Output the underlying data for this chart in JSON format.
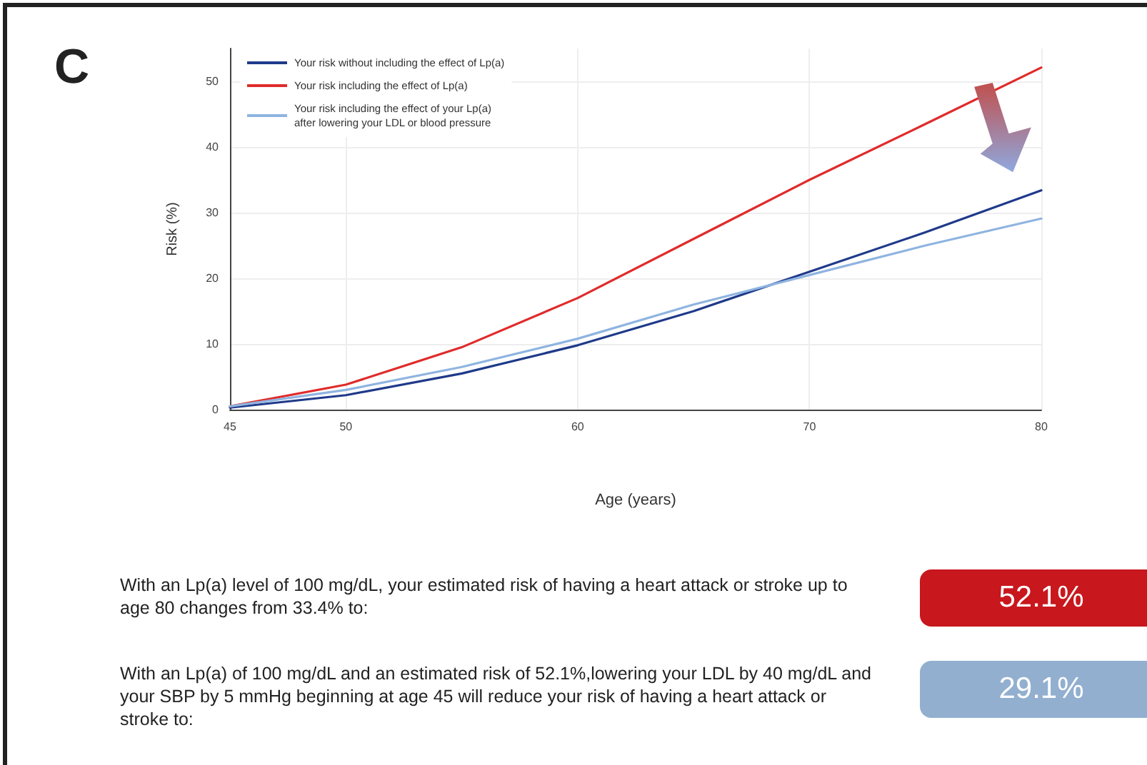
{
  "chart_data": {
    "type": "line",
    "xlabel": "Age (years)",
    "ylabel": "Risk (%)",
    "x": [
      45,
      50,
      55,
      60,
      65,
      70,
      75,
      80
    ],
    "series": [
      {
        "name": "Your risk without including the effect of Lp(a)",
        "color": "#1f3a8a",
        "values": [
          0.3,
          2.2,
          5.5,
          9.8,
          15,
          21,
          27,
          33.4
        ]
      },
      {
        "name": "Your risk including the effect of Lp(a)",
        "color": "#e02b2b",
        "values": [
          0.5,
          3.8,
          9.5,
          17,
          26,
          35,
          43.5,
          52.1
        ]
      },
      {
        "name": "Your risk including the effect of your Lp(a)\nafter lowering your LDL or blood pressure",
        "color": "#8fb4e0",
        "values": [
          0.5,
          3,
          6.5,
          10.8,
          16,
          20.5,
          25,
          29.1
        ]
      }
    ],
    "xlim": [
      45,
      80
    ],
    "xticks": [
      45,
      50,
      60,
      70,
      80
    ],
    "ylim": [
      0,
      55
    ],
    "yticks": [
      0,
      10,
      20,
      30,
      40,
      50
    ],
    "grid": true,
    "legend": "top left",
    "marker": "none",
    "line_style": "solid",
    "annotations": [
      "C",
      "With an Lp(a) level of 100 mg/dL, your estimated risk of having a heart attack or stroke up to age 80 changes from 33.4% to:",
      "52.1%",
      "With an Lp(a) of 100 mg/dL and an estimated risk of 52.1%,lowering your LDL by 40 mg/dL and your SBP by 5 mmHg beginning at age 45 will reduce your risk of having a heart attack or stroke to:",
      "29.1%"
    ]
  }
}
